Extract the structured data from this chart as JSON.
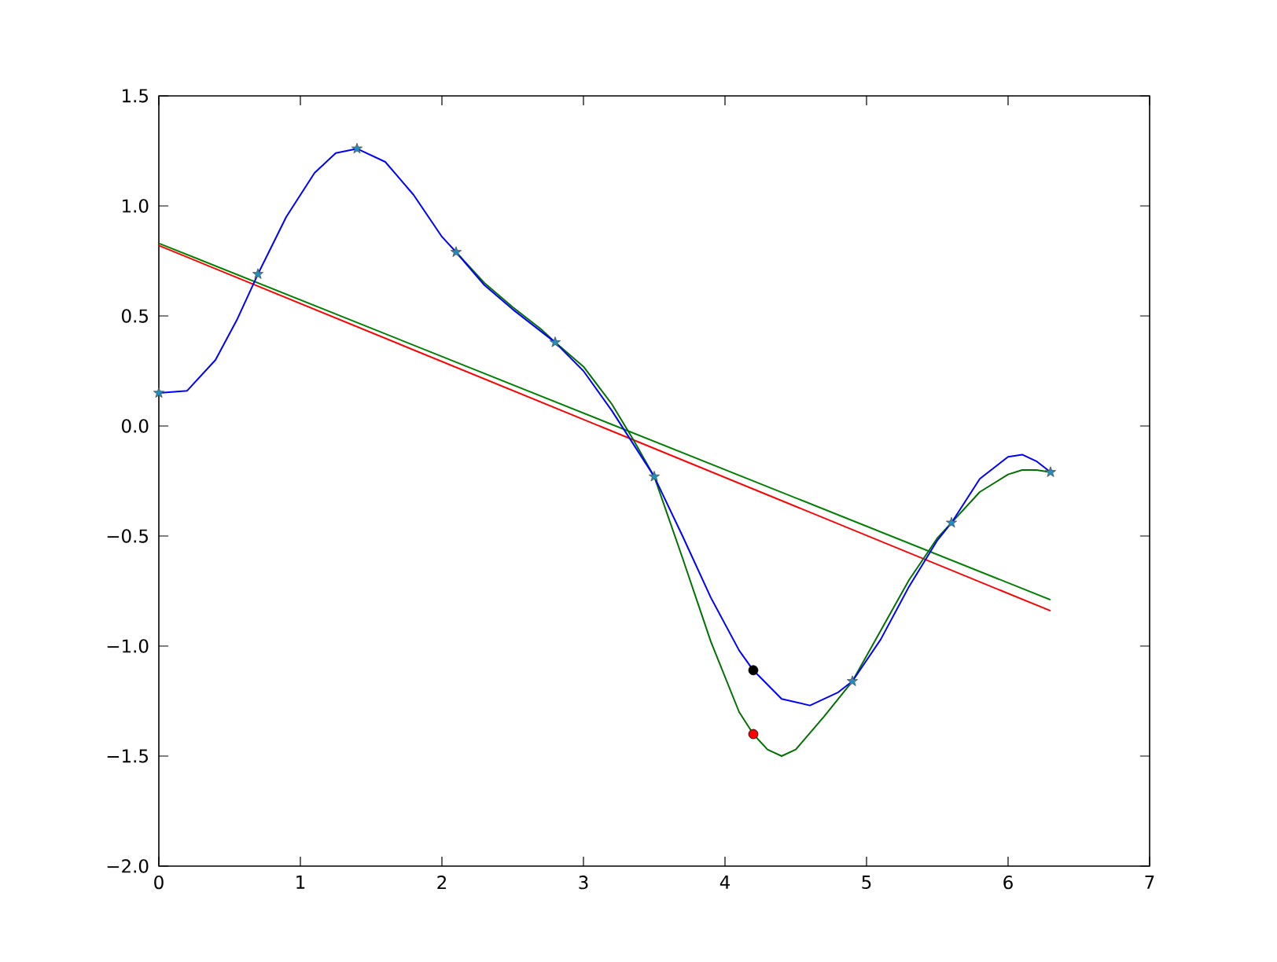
{
  "chart_data": {
    "type": "line",
    "xlim": [
      0,
      7
    ],
    "xticks": [
      0,
      1,
      2,
      3,
      4,
      5,
      6,
      7
    ],
    "ylim": [
      -2,
      1.5
    ],
    "yticks": [
      {
        "value": -2,
        "label": "−2.0"
      },
      {
        "value": -1.5,
        "label": "−1.5"
      },
      {
        "value": -1,
        "label": "−1.0"
      },
      {
        "value": -0.5,
        "label": "−0.5"
      },
      {
        "value": 0,
        "label": "0.0"
      },
      {
        "value": 0.5,
        "label": "0.5"
      },
      {
        "value": 1,
        "label": "1.0"
      },
      {
        "value": 1.5,
        "label": "1.5"
      }
    ],
    "grid": false,
    "legend": false,
    "series": [
      {
        "color": "#008000",
        "x": [
          0,
          6.3
        ],
        "values": [
          0.83,
          -0.79
        ]
      },
      {
        "color": "#ff0000",
        "x": [
          0,
          6.3
        ],
        "values": [
          0.82,
          -0.84
        ]
      },
      {
        "color": "#007000",
        "x": [
          2.1,
          2.3,
          2.5,
          2.7,
          2.8,
          3.0,
          3.2,
          3.35,
          3.5,
          3.7,
          3.9,
          4.1,
          4.2,
          4.3,
          4.4,
          4.5,
          4.7,
          4.9,
          5.1,
          5.3,
          5.5,
          5.6,
          5.8,
          6.0,
          6.1,
          6.2,
          6.3
        ],
        "values": [
          0.79,
          0.65,
          0.54,
          0.44,
          0.38,
          0.27,
          0.1,
          -0.06,
          -0.23,
          -0.6,
          -0.98,
          -1.3,
          -1.4,
          -1.47,
          -1.5,
          -1.47,
          -1.32,
          -1.16,
          -0.93,
          -0.7,
          -0.51,
          -0.44,
          -0.3,
          -0.22,
          -0.2,
          -0.2,
          -0.21
        ]
      },
      {
        "color": "#0000ff",
        "x": [
          0,
          0.2,
          0.4,
          0.55,
          0.7,
          0.9,
          1.1,
          1.25,
          1.4,
          1.6,
          1.8,
          2.0,
          2.1,
          2.3,
          2.5,
          2.7,
          2.8,
          3.0,
          3.2,
          3.35,
          3.5,
          3.7,
          3.9,
          4.1,
          4.2,
          4.4,
          4.6,
          4.8,
          4.9,
          5.1,
          5.3,
          5.5,
          5.6,
          5.8,
          6.0,
          6.1,
          6.2,
          6.3
        ],
        "values": [
          0.15,
          0.16,
          0.3,
          0.48,
          0.69,
          0.95,
          1.15,
          1.24,
          1.26,
          1.2,
          1.05,
          0.86,
          0.79,
          0.64,
          0.53,
          0.43,
          0.38,
          0.25,
          0.07,
          -0.08,
          -0.23,
          -0.5,
          -0.78,
          -1.02,
          -1.11,
          -1.24,
          -1.27,
          -1.21,
          -1.16,
          -0.97,
          -0.73,
          -0.52,
          -0.44,
          -0.24,
          -0.14,
          -0.13,
          -0.16,
          -0.21
        ]
      },
      {
        "type": "scatter",
        "marker": "star",
        "color": "#1f8fbf",
        "x": [
          0,
          0.7,
          1.4,
          2.1,
          2.8,
          3.5,
          4.9,
          5.6,
          6.3
        ],
        "values": [
          0.15,
          0.69,
          1.26,
          0.79,
          0.38,
          -0.23,
          -1.16,
          -0.44,
          -0.21
        ]
      },
      {
        "type": "scatter",
        "marker": "circle",
        "color": "#000000",
        "x": [
          4.2
        ],
        "values": [
          -1.11
        ]
      },
      {
        "type": "scatter",
        "marker": "circle",
        "color": "#ff0000",
        "x": [
          4.2
        ],
        "values": [
          -1.4
        ]
      }
    ]
  }
}
